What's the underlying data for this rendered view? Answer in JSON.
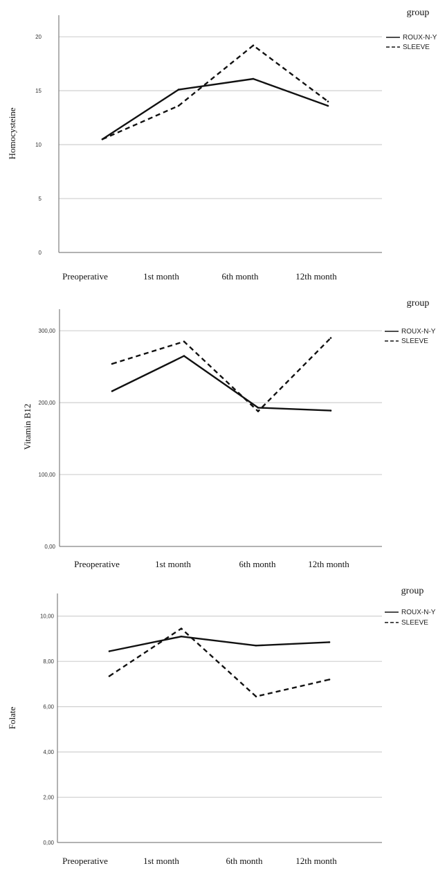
{
  "chart_data": [
    {
      "type": "line",
      "ylabel": "Homocysteine",
      "categories": [
        "Preoperative",
        "1st month",
        "6th month",
        "12th month"
      ],
      "yticks": [
        "0",
        "5",
        "10",
        "15",
        "20"
      ],
      "ylim": [
        0,
        22
      ],
      "legend": {
        "title": "group",
        "placement": "top-right"
      },
      "series": [
        {
          "name": "ROUX-N-Y",
          "style": "solid",
          "values": [
            10.5,
            15.1,
            16.1,
            13.6
          ]
        },
        {
          "name": "SLEEVE",
          "style": "dashed",
          "values": [
            10.5,
            13.6,
            19.2,
            14.0
          ]
        }
      ]
    },
    {
      "type": "line",
      "ylabel": "Vitamin B12",
      "categories": [
        "Preoperative",
        "1st month",
        "6th month",
        "12th month"
      ],
      "yticks": [
        "0,00",
        "100,00",
        "200,00",
        "300,00"
      ],
      "ylim": [
        0,
        330
      ],
      "legend": {
        "title": "group",
        "placement": "top-right"
      },
      "series": [
        {
          "name": "ROUX-N-Y",
          "style": "solid",
          "values": [
            216,
            265,
            193,
            189
          ]
        },
        {
          "name": "SLEEVE",
          "style": "dashed",
          "values": [
            254,
            285,
            188,
            290
          ]
        }
      ]
    },
    {
      "type": "line",
      "ylabel": "Folate",
      "categories": [
        "Preoperative",
        "1st month",
        "6th month",
        "12th month"
      ],
      "yticks": [
        "0,00",
        "2,00",
        "4,00",
        "6,00",
        "8,00",
        "10,00"
      ],
      "ylim": [
        0,
        11
      ],
      "legend": {
        "title": "group",
        "placement": "top-right"
      },
      "series": [
        {
          "name": "ROUX-N-Y",
          "style": "solid",
          "values": [
            8.45,
            9.1,
            8.7,
            8.85
          ]
        },
        {
          "name": "SLEEVE",
          "style": "dashed",
          "values": [
            7.35,
            9.45,
            6.45,
            7.2
          ]
        }
      ]
    }
  ],
  "style": {
    "line_color": "#111111",
    "grid_color": "#cfcfcf",
    "axis_color": "#666666"
  }
}
